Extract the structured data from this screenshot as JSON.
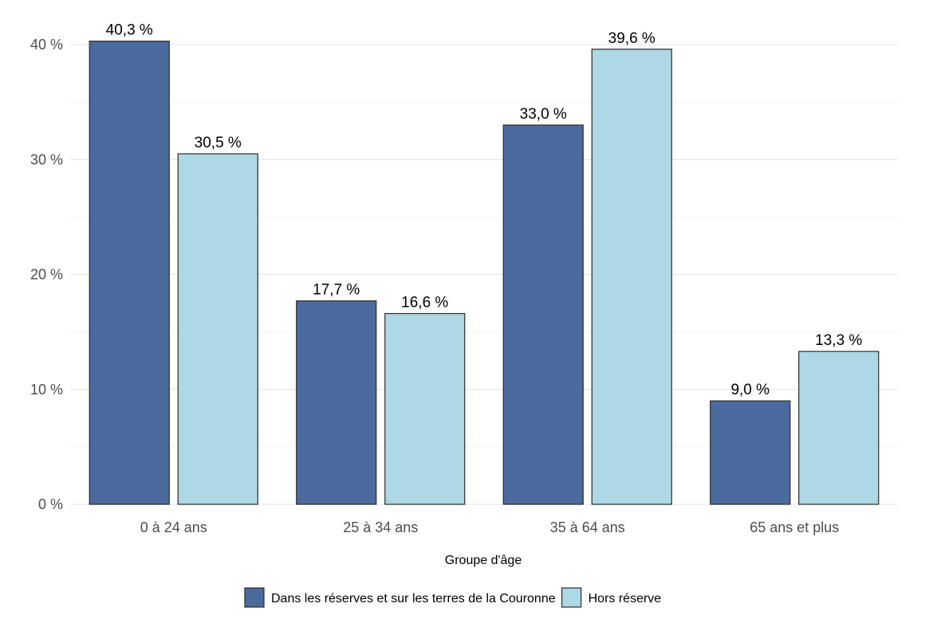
{
  "chart_data": {
    "type": "bar",
    "categories": [
      "0 à 24 ans",
      "25 à 34 ans",
      "35 à 64 ans",
      "65 ans et plus"
    ],
    "series": [
      {
        "name": "Dans les réserves et sur les terres de la Couronne",
        "values": [
          40.3,
          17.7,
          33.0,
          9.0
        ],
        "labels": [
          "40,3 %",
          "17,7 %",
          "33,0 %",
          "9,0 %"
        ],
        "color": "#4b6a9e"
      },
      {
        "name": "Hors réserve",
        "values": [
          30.5,
          16.6,
          39.6,
          13.3
        ],
        "labels": [
          "30,5 %",
          "16,6 %",
          "39,6 %",
          "13,3 %"
        ],
        "color": "#add8e6"
      }
    ],
    "xlabel": "Groupe d'âge",
    "ylabel": "",
    "ylim": [
      0,
      40
    ],
    "yticks": [
      0,
      10,
      20,
      30,
      40
    ],
    "ytick_labels": [
      "0 %",
      "10 %",
      "20 %",
      "30 %",
      "40 %"
    ],
    "grid": true,
    "legend": "bottom"
  }
}
